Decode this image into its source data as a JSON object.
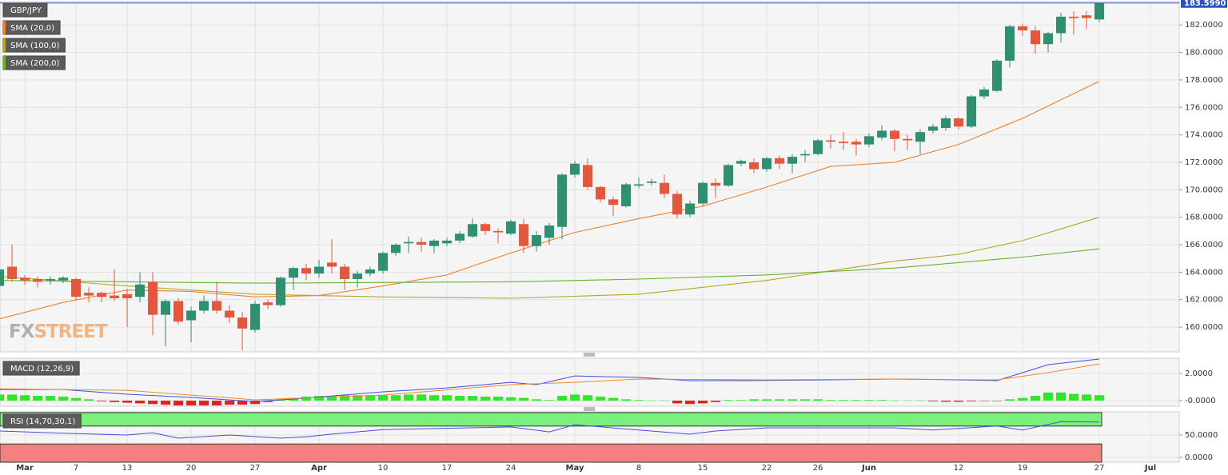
{
  "chart_data": [
    {
      "type": "candlestick",
      "watermark": [
        "FX",
        "STREET"
      ],
      "xlim": [
        0.06,
        92.25
      ],
      "ylim": [
        158.2,
        183.7
      ],
      "yticks": [
        {
          "value": 160,
          "label": "160.0000"
        },
        {
          "value": 162,
          "label": "162.0000"
        },
        {
          "value": 164,
          "label": "164.0000"
        },
        {
          "value": 166,
          "label": "166.0000"
        },
        {
          "value": 168,
          "label": "168.0000"
        },
        {
          "value": 170,
          "label": "170.0000"
        },
        {
          "value": 172,
          "label": "172.0000"
        },
        {
          "value": 174,
          "label": "174.0000"
        },
        {
          "value": 176,
          "label": "176.0000"
        },
        {
          "value": 178,
          "label": "178.0000"
        },
        {
          "value": 180,
          "label": "180.0000"
        },
        {
          "value": 182,
          "label": "182.0000"
        }
      ],
      "last_price": {
        "value": 183.599,
        "label": "183.5990",
        "color": "#2c4fc4"
      },
      "up_color": "#2f8f71",
      "down_color": "#e4573d",
      "series": [
        {
          "name": "GBP/JPY",
          "open": [
            163.0,
            164.4,
            163.6,
            163.5,
            163.4,
            163.4,
            163.5,
            162.5,
            162.5,
            162.3,
            162.4,
            162.2,
            163.3,
            160.9,
            161.9,
            160.5,
            161.2,
            161.9,
            161.2,
            160.7,
            159.8,
            161.8,
            161.6,
            163.6,
            164.3,
            163.9,
            164.7,
            164.4,
            163.5,
            163.9,
            164.1,
            165.4,
            166.1,
            166.2,
            165.9,
            166.1,
            166.3,
            166.6,
            167.5,
            167.0,
            166.8,
            167.5,
            165.9,
            166.5,
            167.3,
            171.1,
            171.8,
            170.2,
            169.3,
            168.8,
            170.3,
            170.5,
            170.5,
            169.7,
            168.2,
            169.0,
            170.5,
            170.3,
            171.9,
            172.0,
            171.5,
            172.3,
            171.9,
            172.5,
            172.6,
            173.6,
            173.5,
            173.5,
            173.3,
            173.8,
            174.3,
            173.7,
            173.5,
            174.3,
            174.5,
            175.2,
            174.6,
            176.8,
            177.2,
            179.4,
            181.9,
            181.6,
            180.6,
            181.4,
            182.6,
            182.7,
            182.4
          ],
          "high": [
            164.3,
            166.0,
            163.8,
            163.7,
            163.7,
            163.7,
            163.6,
            162.9,
            162.6,
            164.2,
            162.8,
            164.0,
            164.0,
            162.0,
            162.1,
            161.5,
            162.3,
            163.3,
            161.6,
            161.1,
            161.9,
            162.0,
            163.7,
            164.4,
            164.6,
            164.9,
            166.4,
            164.6,
            164.1,
            164.4,
            165.5,
            166.1,
            166.6,
            166.5,
            166.4,
            166.5,
            167.0,
            167.9,
            167.6,
            167.2,
            167.8,
            167.9,
            167.0,
            167.6,
            171.2,
            172.1,
            172.3,
            170.3,
            169.5,
            170.5,
            170.9,
            170.8,
            171.1,
            169.9,
            169.2,
            170.6,
            170.8,
            171.9,
            172.2,
            172.3,
            172.4,
            172.5,
            172.6,
            172.9,
            173.7,
            174.0,
            174.2,
            173.7,
            174.1,
            174.7,
            174.4,
            174.0,
            174.4,
            174.8,
            175.4,
            175.3,
            176.9,
            177.5,
            179.5,
            182.0,
            182.1,
            181.9,
            181.5,
            182.9,
            183.0,
            183.0,
            183.6
          ],
          "low": [
            162.7,
            163.3,
            163.1,
            162.9,
            163.1,
            163.2,
            162.0,
            161.8,
            161.8,
            161.9,
            160.0,
            161.8,
            159.4,
            158.6,
            160.2,
            158.9,
            161.0,
            161.0,
            160.3,
            158.3,
            159.6,
            161.3,
            161.5,
            162.7,
            163.4,
            163.6,
            163.9,
            162.7,
            162.9,
            163.7,
            163.9,
            165.2,
            165.4,
            165.5,
            165.4,
            165.9,
            166.1,
            166.5,
            166.7,
            166.1,
            166.7,
            165.4,
            165.5,
            166.0,
            166.4,
            170.9,
            170.0,
            169.1,
            168.1,
            168.7,
            170.1,
            170.3,
            169.4,
            167.9,
            168.0,
            168.8,
            169.4,
            170.2,
            171.7,
            171.2,
            171.3,
            171.5,
            171.2,
            172.0,
            172.5,
            173.0,
            172.9,
            172.5,
            173.1,
            173.6,
            172.8,
            172.9,
            172.6,
            174.1,
            174.3,
            174.4,
            174.5,
            176.6,
            177.1,
            178.9,
            181.2,
            179.9,
            180.0,
            180.7,
            181.3,
            181.7,
            182.2
          ],
          "close": [
            164.2,
            163.5,
            163.4,
            163.3,
            163.5,
            163.6,
            162.2,
            162.3,
            162.2,
            162.1,
            162.1,
            163.1,
            160.9,
            161.9,
            160.4,
            161.2,
            161.9,
            161.2,
            160.7,
            159.9,
            161.7,
            161.6,
            163.6,
            164.3,
            163.9,
            164.4,
            164.4,
            163.5,
            163.9,
            164.2,
            165.4,
            166.0,
            166.2,
            166.0,
            166.3,
            166.3,
            166.8,
            167.5,
            167.0,
            166.9,
            167.7,
            165.9,
            166.7,
            167.4,
            171.1,
            171.9,
            170.2,
            169.3,
            168.9,
            170.4,
            170.4,
            170.6,
            169.7,
            168.2,
            169.0,
            170.5,
            170.3,
            171.8,
            172.1,
            171.5,
            172.3,
            171.9,
            172.4,
            172.6,
            173.6,
            173.5,
            173.4,
            173.3,
            173.9,
            174.3,
            173.7,
            173.6,
            174.2,
            174.6,
            175.2,
            174.6,
            176.8,
            177.3,
            179.4,
            181.9,
            181.6,
            180.6,
            181.4,
            182.6,
            182.5,
            182.5,
            183.599
          ]
        }
      ],
      "overlays": [
        {
          "name": "SMA (20,0)",
          "color": "#f07f2a",
          "x": [
            0,
            5,
            10,
            15,
            20,
            25,
            30,
            35,
            40,
            45,
            50,
            55,
            60,
            65,
            70,
            75,
            80,
            86
          ],
          "values": [
            160.6,
            161.8,
            162.7,
            162.6,
            162.2,
            162.3,
            163.0,
            163.8,
            165.4,
            166.9,
            167.9,
            168.8,
            170.2,
            171.7,
            172.0,
            173.3,
            175.2,
            177.9
          ]
        },
        {
          "name": "SMA (100,0)",
          "color": "#b5a62a",
          "x": [
            0,
            10,
            20,
            30,
            40,
            50,
            55,
            60,
            65,
            70,
            75,
            80,
            86
          ],
          "values": [
            163.7,
            163.0,
            162.4,
            162.2,
            162.1,
            162.4,
            162.9,
            163.4,
            164.1,
            164.8,
            165.3,
            166.3,
            168.0
          ]
        },
        {
          "name": "SMA (200,0)",
          "color": "#66b32e",
          "x": [
            0,
            20,
            40,
            50,
            60,
            70,
            80,
            86
          ],
          "values": [
            163.4,
            163.2,
            163.3,
            163.5,
            163.8,
            164.3,
            165.1,
            165.7
          ]
        }
      ]
    },
    {
      "type": "macd",
      "label": "MACD (12,26,9)",
      "xlim": [
        0.06,
        92.25
      ],
      "ylim": [
        -0.41,
        3.12
      ],
      "yticks": [
        {
          "value": 0,
          "label": "-0.0000"
        },
        {
          "value": 2,
          "label": "2.0000"
        }
      ],
      "histogram": {
        "up_color": "#2ee62e",
        "down_color": "#e61e1e",
        "values": [
          0.45,
          0.45,
          0.4,
          0.35,
          0.35,
          0.3,
          0.2,
          0.1,
          -0.05,
          -0.1,
          -0.15,
          -0.2,
          -0.25,
          -0.3,
          -0.35,
          -0.35,
          -0.35,
          -0.35,
          -0.3,
          -0.3,
          -0.25,
          -0.1,
          0.1,
          0.2,
          0.3,
          0.35,
          0.35,
          0.4,
          0.4,
          0.4,
          0.4,
          0.4,
          0.45,
          0.45,
          0.4,
          0.4,
          0.35,
          0.35,
          0.3,
          0.3,
          0.25,
          0.2,
          0.1,
          0.05,
          0.35,
          0.45,
          0.4,
          0.3,
          0.2,
          0.1,
          0.05,
          0.02,
          0.02,
          -0.2,
          -0.25,
          -0.2,
          -0.1,
          0.05,
          0.05,
          0.1,
          0.1,
          0.1,
          0.1,
          0.1,
          0.1,
          0.05,
          0.05,
          0.05,
          0.05,
          0.05,
          0.02,
          0.02,
          0.02,
          -0.05,
          -0.08,
          -0.08,
          -0.05,
          -0.03,
          -0.02,
          0.1,
          0.2,
          0.35,
          0.6,
          0.6,
          0.5,
          0.45,
          0.4
        ]
      },
      "series": [
        {
          "color": "#3f51d8",
          "x": [
            0,
            5,
            10,
            15,
            20,
            23,
            30,
            35,
            40,
            42,
            45,
            50,
            54,
            58,
            65,
            70,
            75,
            78,
            82,
            86
          ],
          "values": [
            0.82,
            0.82,
            0.47,
            0.24,
            -0.06,
            0.12,
            0.65,
            0.94,
            1.35,
            1.18,
            1.82,
            1.71,
            1.47,
            1.47,
            1.53,
            1.59,
            1.53,
            1.47,
            2.65,
            3.06
          ]
        },
        {
          "color": "#f08a30",
          "x": [
            0,
            10,
            20,
            30,
            40,
            45,
            50,
            60,
            70,
            78,
            82,
            86
          ],
          "values": [
            0.88,
            0.76,
            0.06,
            0.41,
            1.18,
            1.35,
            1.59,
            1.53,
            1.59,
            1.53,
            2.06,
            2.71
          ]
        }
      ]
    },
    {
      "type": "rsi",
      "label": "RSI (14,70,30,1)",
      "xlim": [
        0.06,
        92.25
      ],
      "ylim": [
        -10.7,
        101.8
      ],
      "yticks": [
        {
          "value": 0,
          "label": "0.0000"
        },
        {
          "value": 50,
          "label": "50.0000"
        }
      ],
      "overbought": 70,
      "oversold": 30,
      "overbought_color": "#7cf07c",
      "oversold_color": "#f58080",
      "xticks": [
        {
          "value": 2,
          "label": "Mar"
        },
        {
          "value": 6,
          "label": "7"
        },
        {
          "value": 10,
          "label": "13"
        },
        {
          "value": 15,
          "label": "20"
        },
        {
          "value": 20,
          "label": "27"
        },
        {
          "value": 25,
          "label": "Apr"
        },
        {
          "value": 30,
          "label": "10"
        },
        {
          "value": 35,
          "label": "17"
        },
        {
          "value": 40,
          "label": "24"
        },
        {
          "value": 45,
          "label": "May"
        },
        {
          "value": 50,
          "label": "8"
        },
        {
          "value": 55,
          "label": "15"
        },
        {
          "value": 60,
          "label": "22"
        },
        {
          "value": 64,
          "label": "26"
        },
        {
          "value": 68,
          "label": "Jun"
        },
        {
          "value": 75,
          "label": "12"
        },
        {
          "value": 80,
          "label": "19"
        },
        {
          "value": 86,
          "label": "27"
        },
        {
          "value": 90,
          "label": "Jul"
        }
      ],
      "series": [
        {
          "color": "#3f51d8",
          "x": [
            0,
            5,
            10,
            12,
            14,
            18,
            22,
            24,
            26,
            30,
            40,
            43,
            45,
            50,
            54,
            56,
            60,
            70,
            73,
            78,
            80,
            83,
            86
          ],
          "values": [
            59,
            54,
            50,
            55,
            43,
            50,
            43,
            46,
            52,
            62,
            68,
            57,
            73,
            61,
            52,
            59,
            66,
            66,
            61,
            70,
            61,
            80,
            79
          ]
        }
      ]
    }
  ]
}
